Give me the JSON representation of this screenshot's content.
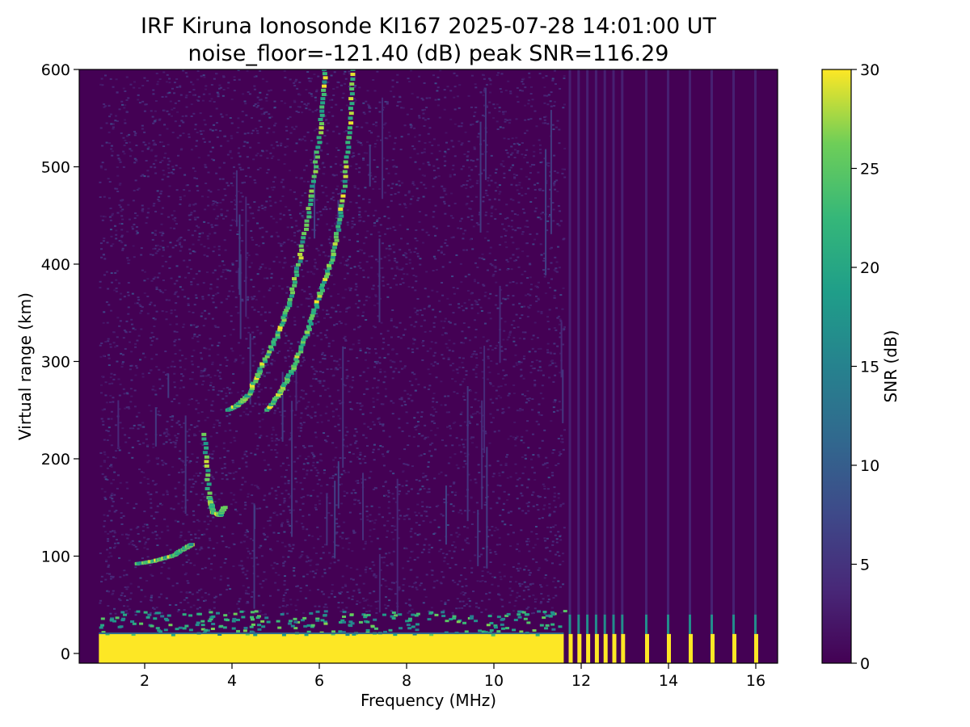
{
  "chart_data": {
    "type": "heatmap",
    "title": "IRF Kiruna Ionosonde KI167 2025-07-28 14:01:00  UT",
    "subtitle": "noise_floor=-121.40 (dB) peak SNR=116.29",
    "xlabel": "Frequency (MHz)",
    "ylabel": "Virtual range (km)",
    "xlim": [
      0.5,
      16.5
    ],
    "ylim": [
      -10,
      600
    ],
    "x_ticks": [
      "2",
      "4",
      "6",
      "8",
      "10",
      "12",
      "14",
      "16"
    ],
    "y_ticks": [
      "0",
      "100",
      "200",
      "300",
      "400",
      "500",
      "600"
    ],
    "colorbar": {
      "label": "SNR (dB)",
      "range": [
        0,
        30
      ],
      "ticks": [
        "0",
        "5",
        "10",
        "15",
        "20",
        "25",
        "30"
      ],
      "colormap": "viridis"
    },
    "frequency_coverage_mhz": [
      0.95,
      16.1
    ],
    "traces": [
      {
        "name": "",
        "points": [
          [
            1.8,
            92
          ],
          [
            2.2,
            95
          ],
          [
            2.6,
            100
          ],
          [
            2.9,
            108
          ],
          [
            3.05,
            112
          ]
        ]
      },
      {
        "name": "",
        "points": [
          [
            3.35,
            225
          ],
          [
            3.45,
            160
          ],
          [
            3.55,
            145
          ],
          [
            3.7,
            142
          ],
          [
            3.8,
            150
          ]
        ]
      },
      {
        "name": "",
        "points": [
          [
            3.9,
            250
          ],
          [
            4.1,
            255
          ],
          [
            4.35,
            265
          ],
          [
            4.6,
            290
          ],
          [
            5.0,
            325
          ],
          [
            5.3,
            360
          ],
          [
            5.55,
            410
          ],
          [
            5.8,
            470
          ],
          [
            6.0,
            540
          ],
          [
            6.1,
            600
          ]
        ]
      },
      {
        "name": "",
        "points": [
          [
            4.8,
            250
          ],
          [
            5.1,
            270
          ],
          [
            5.4,
            295
          ],
          [
            5.7,
            330
          ],
          [
            6.0,
            370
          ],
          [
            6.3,
            410
          ],
          [
            6.5,
            460
          ],
          [
            6.65,
            530
          ],
          [
            6.75,
            600
          ]
        ]
      }
    ],
    "ground_echo_band_km": [
      0,
      40
    ],
    "sounded_frequencies_above_11_6_mhz": [
      11.75,
      11.95,
      12.15,
      12.35,
      12.55,
      12.75,
      12.95,
      13.5,
      14.0,
      14.5,
      15.0,
      15.5,
      16.0
    ],
    "colors": {
      "background": "#440154",
      "peak": "#fde725"
    }
  }
}
